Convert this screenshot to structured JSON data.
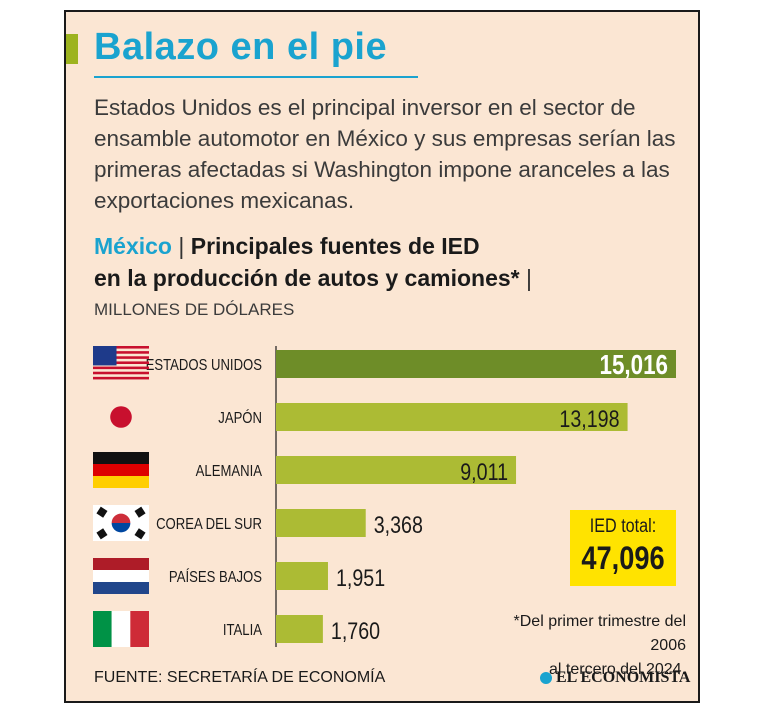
{
  "header": {
    "title": "Balazo en el pie",
    "intro": "Estados Unidos es el principal inversor en el sector de ensamble automotor en México y sus empresas serían las primeras afectadas si Washington impone aranceles a las exportaciones mexicanas."
  },
  "subtitle": {
    "country": "México",
    "separator": "|",
    "line1": "Principales fuentes de IED",
    "line2": "en la producción de autos y camiones*",
    "end_separator": "|"
  },
  "units": "MILLONES DE DÓLARES",
  "chart_data": {
    "type": "bar",
    "orientation": "horizontal",
    "title": "México | Principales fuentes de IED en la producción de autos y camiones*",
    "ylabel": "MILLONES DE DÓLARES",
    "categories": [
      "ESTADOS UNIDOS",
      "JAPÓN",
      "ALEMANIA",
      "COREA DEL SUR",
      "PAÍSES BAJOS",
      "ITALIA"
    ],
    "values": [
      15016,
      13198,
      9011,
      3368,
      1951,
      1760
    ],
    "value_labels": [
      "15,016",
      "13,198",
      "9,011",
      "3,368",
      "1,951",
      "1,760"
    ],
    "flags": [
      "usa-flag-icon",
      "japan-flag-icon",
      "germany-flag-icon",
      "south-korea-flag-icon",
      "netherlands-flag-icon",
      "italy-flag-icon"
    ],
    "xlim": [
      0,
      15016
    ],
    "colors": {
      "highlight": "#6e8d28",
      "bar": "#acbb34",
      "axis": "#1a1a1a"
    }
  },
  "total": {
    "label": "IED total:",
    "value": "47,096"
  },
  "footnote": {
    "line1": "*Del primer trimestre del 2006",
    "line2": "al tercero del 2024."
  },
  "source": "FUENTE: SECRETARÍA DE ECONOMÍA",
  "brand": "EL ECONOMISTA",
  "colors": {
    "background": "#fbe6d3",
    "title": "#1aa3cf",
    "accent": "#9db31f",
    "total_box": "#ffe300"
  }
}
